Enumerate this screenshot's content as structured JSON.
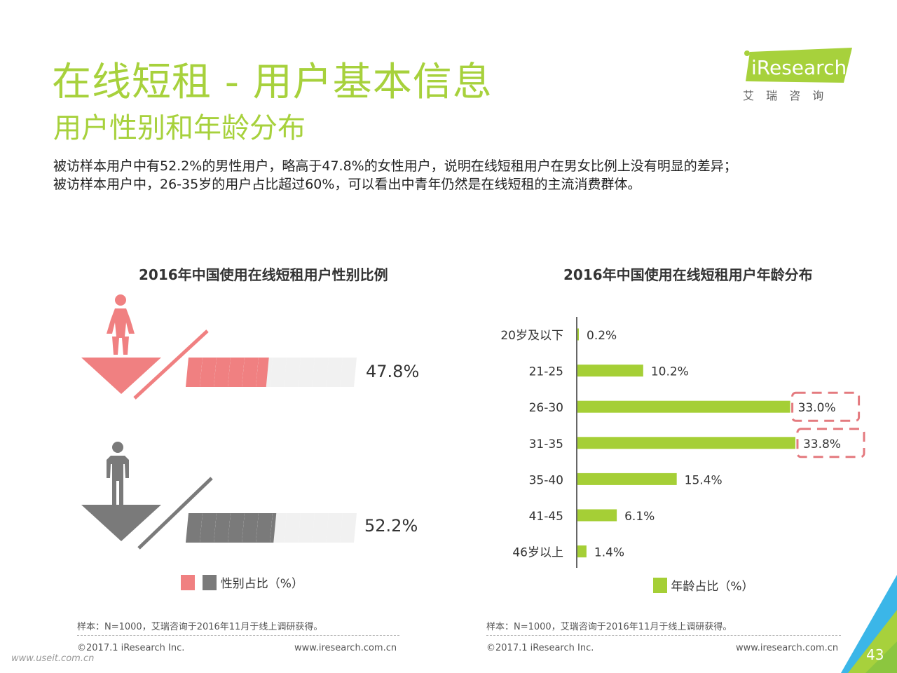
{
  "header": {
    "title": "在线短租 - 用户基本信息",
    "subtitle": "用户性别和年龄分布"
  },
  "summary": {
    "line1": "被访样本用户中有52.2%的男性用户，略高于47.8%的女性用户，说明在线短租用户在男女比例上没有明显的差异；",
    "line2": "被访样本用户中，26-35岁的用户占比超过60%，可以看出中青年仍然是在线短租的主流消费群体。"
  },
  "logo": {
    "brand": "iResearch",
    "chinese": "艾 瑞 咨 询"
  },
  "colors": {
    "accent": "#a7d13c",
    "female": "#f08081",
    "male": "#7a7a7a",
    "bar": "#a5cf36",
    "highlight": "#e47a7f"
  },
  "chart_data": [
    {
      "type": "bar",
      "title": "2016年中国使用在线短租用户性别比例",
      "categories": [
        "女性",
        "男性"
      ],
      "values": [
        47.8,
        52.2
      ],
      "value_labels": [
        "47.8%",
        "52.2%"
      ],
      "legend": "性别占比（%）",
      "icons": [
        "female-figure-icon",
        "male-figure-icon"
      ]
    },
    {
      "type": "bar",
      "orientation": "horizontal",
      "title": "2016年中国使用在线短租用户年龄分布",
      "categories": [
        "20岁及以下",
        "21-25",
        "26-30",
        "31-35",
        "35-40",
        "41-45",
        "46岁以上"
      ],
      "values": [
        0.2,
        10.2,
        33.0,
        33.8,
        15.4,
        6.1,
        1.4
      ],
      "value_labels": [
        "0.2%",
        "10.2%",
        "33.0%",
        "33.8%",
        "15.4%",
        "6.1%",
        "1.4%"
      ],
      "highlighted": [
        "26-30",
        "31-35"
      ],
      "legend": "年龄占比（%）"
    }
  ],
  "footer": {
    "source_left": "样本：N=1000，艾瑞咨询于2016年11月于线上调研获得。",
    "source_right": "样本：N=1000，艾瑞咨询于2016年11月于线上调研获得。",
    "copyright_left": "©2017.1 iResearch Inc.",
    "url_left": "www.iresearch.com.cn",
    "copyright_right": "©2017.1 iResearch Inc.",
    "url_right": "www.iresearch.com.cn",
    "page_number": "43",
    "watermark": "www.useit.com.cn"
  }
}
